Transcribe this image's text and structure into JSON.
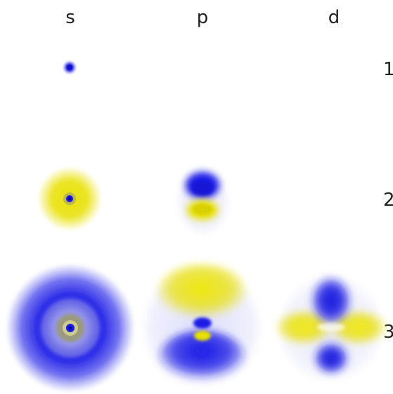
{
  "columns": [
    {
      "label": "s"
    },
    {
      "label": "p"
    },
    {
      "label": "d"
    }
  ],
  "rows": [
    {
      "label": "1"
    },
    {
      "label": "2"
    },
    {
      "label": "3"
    }
  ],
  "colors": {
    "positive_lobe": "#1a1ae6",
    "negative_lobe": "#e8e000",
    "background": "#ffffff",
    "text": "#222222"
  }
}
